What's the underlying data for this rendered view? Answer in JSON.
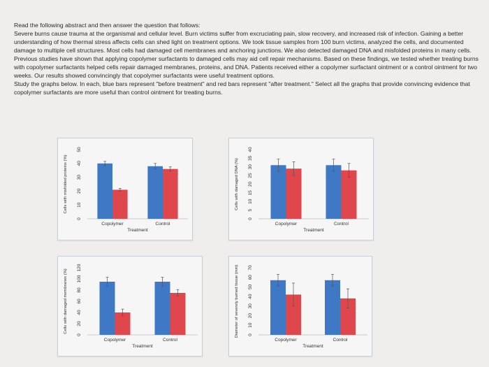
{
  "passage": {
    "intro": "Read the following abstract and then answer the question that follows:",
    "abstract": "Severe burns cause trauma at the organismal and cellular level. Burn victims suffer from excruciating pain, slow recovery, and increased risk of infection. Gaining a better understanding of how thermal stress affects cells can shed light on treatment options. We took tissue samples from 100 burn victims, analyzed the cells, and documented damage to multiple cell structures. Most cells had damaged cell membranes and anchoring junctions. We also detected damaged DNA and misfolded proteins in many cells. Previous studies have shown that applying copolymer surfactants to damaged cells may aid cell repair mechanisms. Based on these findings, we tested whether treating burns with copolymer surfactants helped cells repair damaged membranes, proteins, and DNA. Patients received either a copolymer surfactant ointment or a control ointment for two weeks. Our results showed convincingly that copolymer surfactants were useful treatment options.",
    "question": "Study the graphs below. In each, blue bars represent \"before treatment\" and red bars represent \"after treatment.\" Select all the graphs that provide convincing evidence that copolymer surfactants are more useful than control ointment for treating burns."
  },
  "colors": {
    "before": "#3f78c4",
    "after": "#e0474c"
  },
  "chart_data": [
    {
      "type": "bar",
      "categories": [
        "Copolymer",
        "Control"
      ],
      "series": [
        {
          "values": [
            40,
            38
          ]
        },
        {
          "values": [
            21,
            36
          ]
        }
      ],
      "errors": [
        [
          1.5,
          2.0
        ],
        [
          1.0,
          1.5
        ]
      ],
      "ylabel": "Cells with misfolded proteins (%)",
      "xlabel": "Treatment",
      "ylim": [
        0,
        50
      ],
      "yticks": [
        "0",
        "10",
        "20",
        "30",
        "40",
        "50"
      ]
    },
    {
      "type": "bar",
      "categories": [
        "Copolymer",
        "Control"
      ],
      "series": [
        {
          "values": [
            31,
            31
          ]
        },
        {
          "values": [
            29,
            28
          ]
        }
      ],
      "errors": [
        [
          3.5,
          3.5
        ],
        [
          4.0,
          4.0
        ]
      ],
      "ylabel": "Cells with damaged DNA (%)",
      "xlabel": "Treatment",
      "ylim": [
        0,
        40
      ],
      "yticks": [
        "0",
        "5",
        "10",
        "15",
        "20",
        "25",
        "30",
        "35",
        "40"
      ]
    },
    {
      "type": "bar",
      "categories": [
        "Copolymer",
        "Control"
      ],
      "series": [
        {
          "values": [
            95,
            95
          ]
        },
        {
          "values": [
            40,
            75
          ]
        }
      ],
      "errors": [
        [
          8,
          8
        ],
        [
          6,
          6
        ]
      ],
      "ylabel": "Cells with damaged membranes (%)",
      "xlabel": "Treatment",
      "ylim": [
        0,
        120
      ],
      "yticks": [
        "0",
        "20",
        "40",
        "60",
        "80",
        "100",
        "120"
      ]
    },
    {
      "type": "bar",
      "categories": [
        "Copolymer",
        "Control"
      ],
      "series": [
        {
          "values": [
            57,
            57
          ]
        },
        {
          "values": [
            42,
            38
          ]
        }
      ],
      "errors": [
        [
          6,
          6
        ],
        [
          12,
          10
        ]
      ],
      "ylabel": "Diameter of severely burned tissue (mm)",
      "xlabel": "Treatment",
      "ylim": [
        0,
        70
      ],
      "yticks": [
        "0",
        "10",
        "20",
        "30",
        "40",
        "50",
        "60",
        "70"
      ]
    }
  ]
}
